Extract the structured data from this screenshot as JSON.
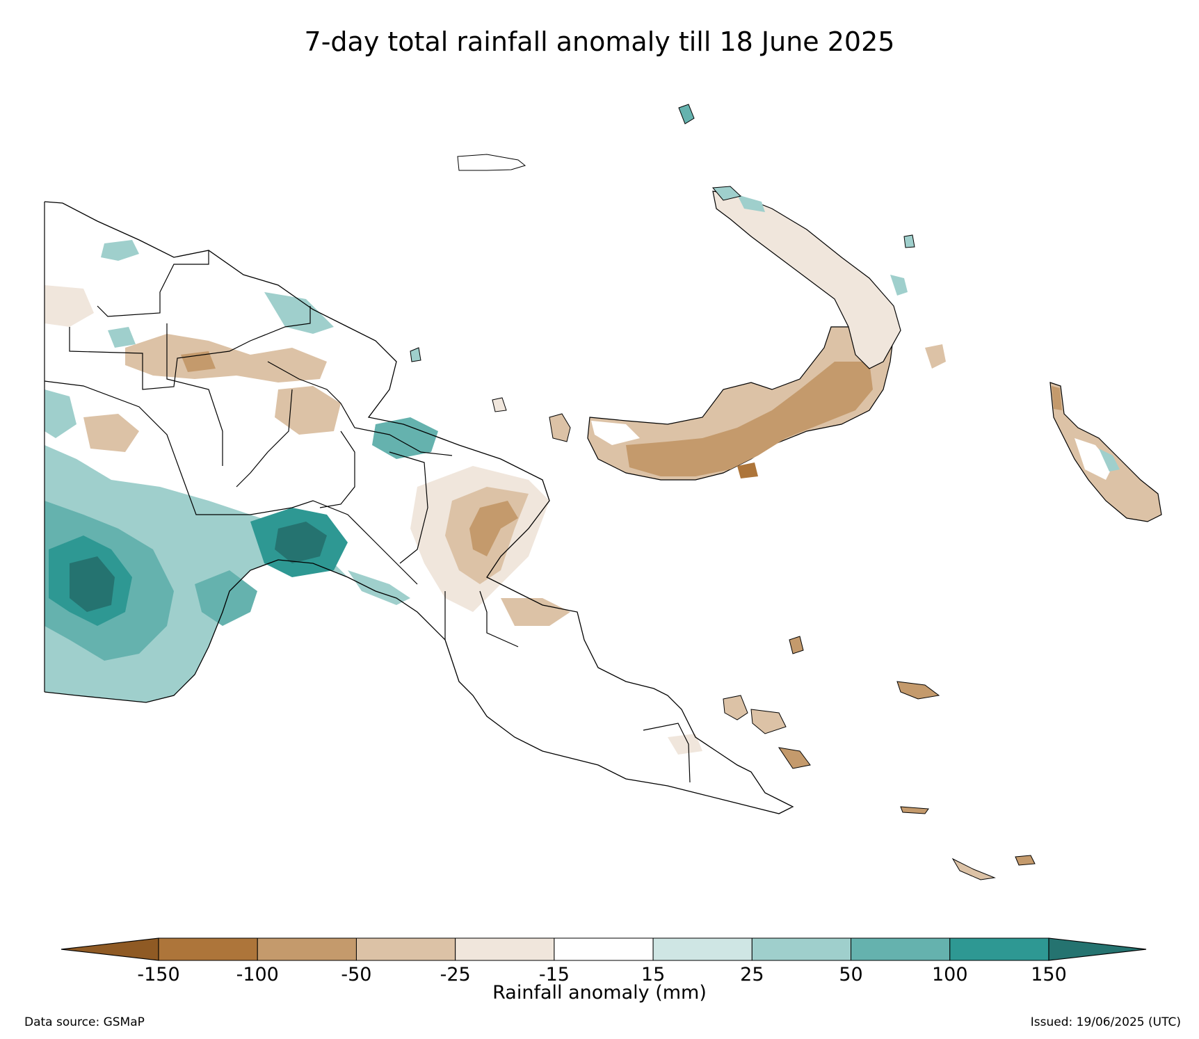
{
  "title": "7-day total rainfall anomaly till 18 June 2025",
  "colorbar": {
    "label": "Rainfall anomaly (mm)",
    "ticks": [
      "-150",
      "-100",
      "-50",
      "-25",
      "-15",
      "15",
      "25",
      "50",
      "100",
      "150"
    ],
    "colors": [
      "#8f5a24",
      "#ad753a",
      "#c49a6c",
      "#dcc2a6",
      "#f0e6dc",
      "#ffffff",
      "#cfe6e4",
      "#9fcfcc",
      "#65b2ae",
      "#2e9893",
      "#257370"
    ],
    "extend": "both"
  },
  "footer": {
    "data_source": "Data source: GSMaP",
    "issued": "Issued: 19/06/2025 (UTC)"
  },
  "map": {
    "region": "Papua New Guinea",
    "land_color": "#ffffff",
    "outline_color": "#000000"
  }
}
